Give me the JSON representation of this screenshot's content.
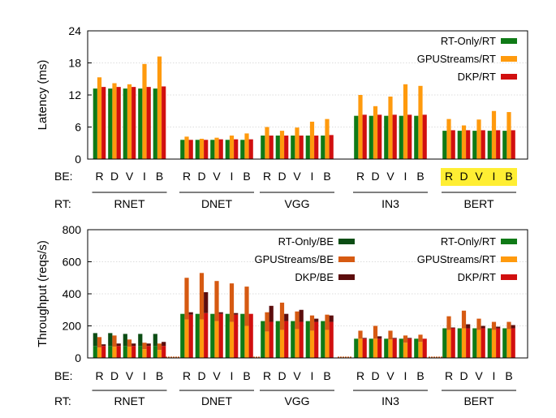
{
  "chart_data": [
    {
      "type": "bar",
      "ylabel": "Latency (ms)",
      "ylim": [
        0,
        24
      ],
      "yticks": [
        0,
        6,
        12,
        18,
        24
      ],
      "row_labels": {
        "be": "BE:",
        "rt": "RT:"
      },
      "groups": [
        "RNET",
        "DNET",
        "VGG",
        "IN3",
        "BERT"
      ],
      "categories": [
        "R",
        "D",
        "V",
        "I",
        "B"
      ],
      "highlight_group": "BERT",
      "highlight_color": "#ffee33",
      "legend_position": "top-right",
      "series": [
        {
          "name": "RT-Only/RT",
          "color": "#0f7a16",
          "values": [
            [
              13.2,
              13.2,
              13.2,
              13.2,
              13.2
            ],
            [
              3.6,
              3.6,
              3.6,
              3.6,
              3.6
            ],
            [
              4.4,
              4.4,
              4.4,
              4.4,
              4.4
            ],
            [
              8.1,
              8.1,
              8.1,
              8.1,
              8.1
            ],
            [
              5.3,
              5.3,
              5.3,
              5.3,
              5.3
            ]
          ]
        },
        {
          "name": "GPUStreams/RT",
          "color": "#ff9a0d",
          "values": [
            [
              15.3,
              14.2,
              14.0,
              17.8,
              19.2
            ],
            [
              4.2,
              3.8,
              4.0,
              4.4,
              4.8
            ],
            [
              6.0,
              5.3,
              5.9,
              7.0,
              7.5
            ],
            [
              12.0,
              9.9,
              11.7,
              14.0,
              13.7
            ],
            [
              7.5,
              6.3,
              7.4,
              9.0,
              8.8
            ]
          ]
        },
        {
          "name": "DKP/RT",
          "color": "#d10f0f",
          "values": [
            [
              13.5,
              13.5,
              13.5,
              13.5,
              13.6
            ],
            [
              3.6,
              3.6,
              3.7,
              3.7,
              3.7
            ],
            [
              4.4,
              4.4,
              4.4,
              4.4,
              4.5
            ],
            [
              8.3,
              8.3,
              8.3,
              8.3,
              8.3
            ],
            [
              5.4,
              5.4,
              5.4,
              5.4,
              5.4
            ]
          ]
        }
      ]
    },
    {
      "type": "bar",
      "stacked_pairs": true,
      "ylabel": "Throughput (reqs/s)",
      "ylim": [
        0,
        800
      ],
      "yticks": [
        0,
        200,
        400,
        600,
        800
      ],
      "row_labels": {
        "be": "BE:",
        "rt": "RT:"
      },
      "groups": [
        "RNET",
        "DNET",
        "VGG",
        "IN3",
        "BERT"
      ],
      "categories": [
        "R",
        "D",
        "V",
        "I",
        "B"
      ],
      "legend_position": "top",
      "series": [
        {
          "name": "RT-Only/BE",
          "color": "#0c4d14",
          "pair": "RT-Only",
          "part": "BE",
          "values": [
            [
              80,
              80,
              75,
              75,
              75
            ],
            [
              0,
              0,
              0,
              0,
              0
            ],
            [
              0,
              0,
              0,
              0,
              0
            ],
            [
              0,
              0,
              0,
              0,
              0
            ],
            [
              0,
              0,
              0,
              0,
              0
            ]
          ]
        },
        {
          "name": "GPUStreams/BE",
          "color": "#d65a12",
          "pair": "GPUStreams",
          "part": "BE",
          "values": [
            [
              65,
              70,
              45,
              40,
              40
            ],
            [
              260,
              290,
              250,
              240,
              245
            ],
            [
              120,
              170,
              110,
              95,
              95
            ],
            [
              50,
              80,
              55,
              45,
              45
            ],
            [
              85,
              110,
              70,
              50,
              45
            ]
          ]
        },
        {
          "name": "DKP/BE",
          "color": "#5c0d0d",
          "pair": "DKP",
          "part": "BE",
          "values": [
            [
              10,
              15,
              15,
              15,
              25
            ],
            [
              15,
              130,
              10,
              10,
              0
            ],
            [
              100,
              45,
              75,
              20,
              40
            ],
            [
              5,
              15,
              5,
              5,
              0
            ],
            [
              5,
              25,
              15,
              10,
              20
            ]
          ]
        },
        {
          "name": "RT-Only/RT",
          "color": "#0f7a16",
          "pair": "RT-Only",
          "part": "RT",
          "values": [
            [
              75,
              75,
              75,
              75,
              75
            ],
            [
              275,
              275,
              275,
              275,
              275
            ],
            [
              230,
              230,
              230,
              230,
              230
            ],
            [
              120,
              120,
              120,
              120,
              120
            ],
            [
              185,
              185,
              185,
              185,
              185
            ]
          ]
        },
        {
          "name": "GPUStreams/RT",
          "color": "#ff9a0d",
          "pair": "GPUStreams",
          "part": "RT",
          "values": [
            [
              65,
              70,
              70,
              55,
              50
            ],
            [
              240,
              240,
              230,
              225,
              200
            ],
            [
              165,
              175,
              180,
              170,
              175
            ],
            [
              120,
              120,
              115,
              95,
              100
            ],
            [
              175,
              185,
              175,
              175,
              180
            ]
          ]
        },
        {
          "name": "DKP/RT",
          "color": "#d10f0f",
          "pair": "DKP",
          "part": "RT",
          "values": [
            [
              75,
              75,
              75,
              75,
              75
            ],
            [
              270,
              280,
              275,
              270,
              275
            ],
            [
              225,
              230,
              225,
              225,
              225
            ],
            [
              120,
              120,
              120,
              120,
              120
            ],
            [
              185,
              185,
              185,
              185,
              185
            ]
          ]
        }
      ]
    }
  ]
}
